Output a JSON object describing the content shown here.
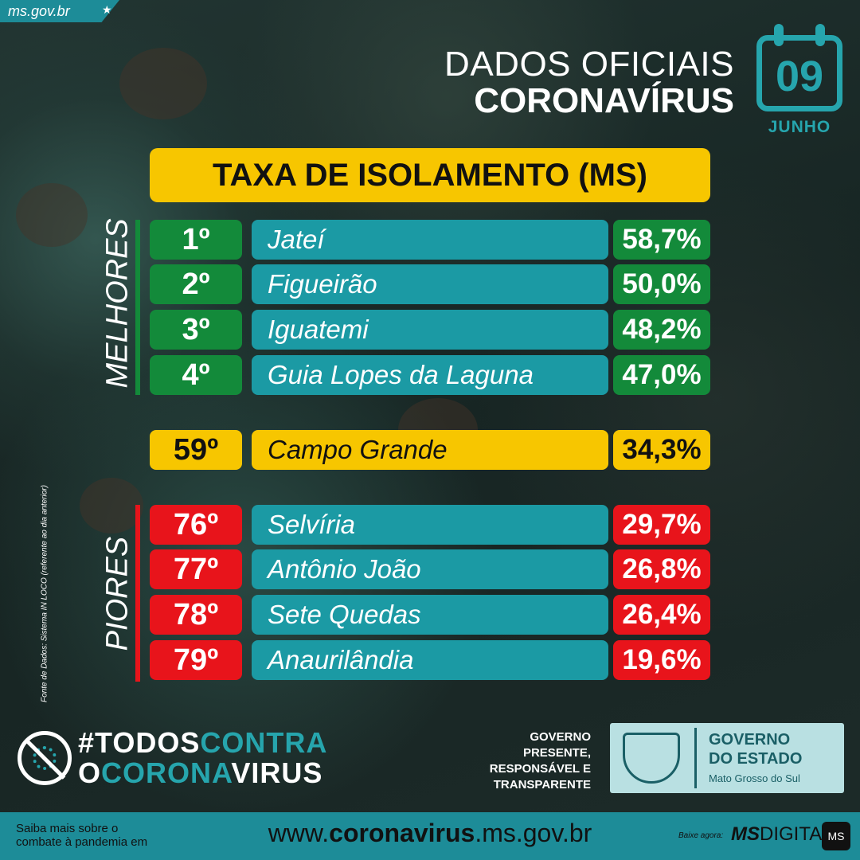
{
  "site": {
    "label": "ms.gov.br",
    "icon": "star-icon"
  },
  "header": {
    "line1": "DADOS OFICIAIS",
    "line2": "CORONAVÍRUS"
  },
  "date": {
    "day": "09",
    "month": "JUNHO",
    "icon": "calendar-icon"
  },
  "title": "TAXA DE ISOLAMENTO (MS)",
  "best": {
    "label": "MELHORES",
    "rows": [
      {
        "rank": "1º",
        "city": "Jateí",
        "pct": "58,7%"
      },
      {
        "rank": "2º",
        "city": "Figueirão",
        "pct": "50,0%"
      },
      {
        "rank": "3º",
        "city": "Iguatemi",
        "pct": "48,2%"
      },
      {
        "rank": "4º",
        "city": "Guia Lopes da Laguna",
        "pct": "47,0%"
      }
    ]
  },
  "capital": {
    "rank": "59º",
    "city": "Campo Grande",
    "pct": "34,3%"
  },
  "worst": {
    "label": "PIORES",
    "rows": [
      {
        "rank": "76º",
        "city": "Selvíria",
        "pct": "29,7%"
      },
      {
        "rank": "77º",
        "city": "Antônio João",
        "pct": "26,8%"
      },
      {
        "rank": "78º",
        "city": "Sete Quedas",
        "pct": "26,4%"
      },
      {
        "rank": "79º",
        "city": "Anaurilândia",
        "pct": "19,6%"
      }
    ]
  },
  "source": "Fonte de Dados: Sistema IN LOCO (referente ao dia anterior)",
  "campaign": {
    "a": "#TODOS",
    "b": "CONTRA",
    "c": "O",
    "d": "CORONA",
    "e": "VIRUS"
  },
  "gov_tag": {
    "l1": "GOVERNO",
    "l2": "PRESENTE,",
    "l3": "RESPONSÁVEL E",
    "l4": "TRANSPARENTE"
  },
  "gov_box": {
    "l1": "GOVERNO",
    "l2": "DO ESTADO",
    "l3": "Mato Grosso do Sul"
  },
  "footer": {
    "left1": "Saiba mais sobre o",
    "left2": "combate à pandemia em",
    "url_pre": "www.",
    "url_bold": "coronavirus",
    "url_post": ".ms.gov.br",
    "download": "Baixe agora:",
    "app_bold": "MS",
    "app_rest": "DIGITAL",
    "app_icon": "MS"
  },
  "colors": {
    "teal": "#1b9aa4",
    "yellow": "#f7c600",
    "green": "#138a3a",
    "red": "#e8141b"
  }
}
